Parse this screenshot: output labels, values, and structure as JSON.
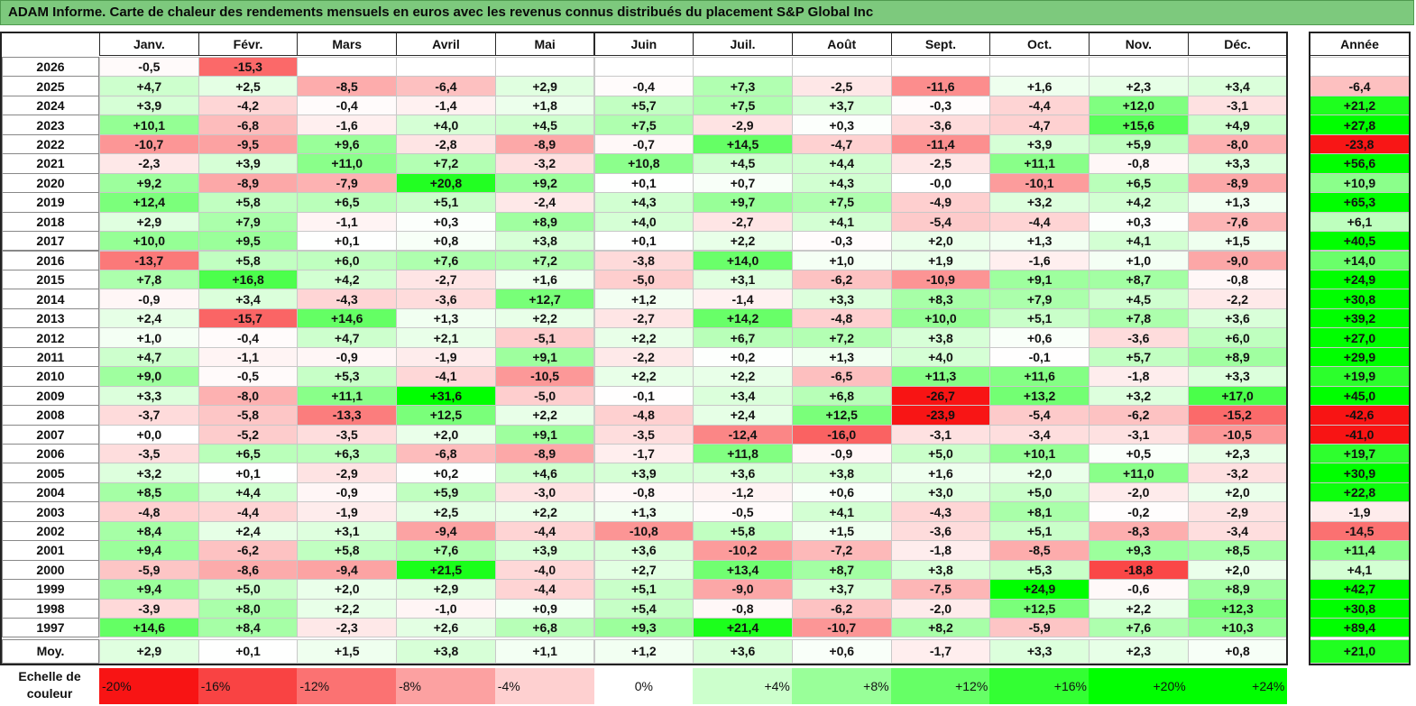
{
  "title": "ADAM Informe. Carte de chaleur des rendements mensuels en euros avec les revenus connus distribués du placement S&P Global Inc",
  "chart_data": {
    "type": "heatmap",
    "columns": [
      "Janv.",
      "Févr.",
      "Mars",
      "Avril",
      "Mai",
      "Juin",
      "Juil.",
      "Août",
      "Sept.",
      "Oct.",
      "Nov.",
      "Déc."
    ],
    "year_column_label": "Année",
    "rows": [
      {
        "year": "2026",
        "values": [
          "-0,5",
          "-15,3",
          "",
          "",
          "",
          "",
          "",
          "",
          "",
          "",
          "",
          ""
        ],
        "annual": ""
      },
      {
        "year": "2025",
        "values": [
          "+4,7",
          "+2,5",
          "-8,5",
          "-6,4",
          "+2,9",
          "-0,4",
          "+7,3",
          "-2,5",
          "-11,6",
          "+1,6",
          "+2,3",
          "+3,4"
        ],
        "annual": "-6,4"
      },
      {
        "year": "2024",
        "values": [
          "+3,9",
          "-4,2",
          "-0,4",
          "-1,4",
          "+1,8",
          "+5,7",
          "+7,5",
          "+3,7",
          "-0,3",
          "-4,4",
          "+12,0",
          "-3,1"
        ],
        "annual": "+21,2"
      },
      {
        "year": "2023",
        "values": [
          "+10,1",
          "-6,8",
          "-1,6",
          "+4,0",
          "+4,5",
          "+7,5",
          "-2,9",
          "+0,3",
          "-3,6",
          "-4,7",
          "+15,6",
          "+4,9"
        ],
        "annual": "+27,8"
      },
      {
        "year": "2022",
        "values": [
          "-10,7",
          "-9,5",
          "+9,6",
          "-2,8",
          "-8,9",
          "-0,7",
          "+14,5",
          "-4,7",
          "-11,4",
          "+3,9",
          "+5,9",
          "-8,0"
        ],
        "annual": "-23,8"
      },
      {
        "year": "2021",
        "values": [
          "-2,3",
          "+3,9",
          "+11,0",
          "+7,2",
          "-3,2",
          "+10,8",
          "+4,5",
          "+4,4",
          "-2,5",
          "+11,1",
          "-0,8",
          "+3,3"
        ],
        "annual": "+56,6"
      },
      {
        "year": "2020",
        "values": [
          "+9,2",
          "-8,9",
          "-7,9",
          "+20,8",
          "+9,2",
          "+0,1",
          "+0,7",
          "+4,3",
          "-0,0",
          "-10,1",
          "+6,5",
          "-8,9"
        ],
        "annual": "+10,9"
      },
      {
        "year": "2019",
        "values": [
          "+12,4",
          "+5,8",
          "+6,5",
          "+5,1",
          "-2,4",
          "+4,3",
          "+9,7",
          "+7,5",
          "-4,9",
          "+3,2",
          "+4,2",
          "+1,3"
        ],
        "annual": "+65,3"
      },
      {
        "year": "2018",
        "values": [
          "+2,9",
          "+7,9",
          "-1,1",
          "+0,3",
          "+8,9",
          "+4,0",
          "-2,7",
          "+4,1",
          "-5,4",
          "-4,4",
          "+0,3",
          "-7,6"
        ],
        "annual": "+6,1"
      },
      {
        "year": "2017",
        "values": [
          "+10,0",
          "+9,5",
          "+0,1",
          "+0,8",
          "+3,8",
          "+0,1",
          "+2,2",
          "-0,3",
          "+2,0",
          "+1,3",
          "+4,1",
          "+1,5"
        ],
        "annual": "+40,5"
      },
      {
        "year": "2016",
        "values": [
          "-13,7",
          "+5,8",
          "+6,0",
          "+7,6",
          "+7,2",
          "-3,8",
          "+14,0",
          "+1,0",
          "+1,9",
          "-1,6",
          "+1,0",
          "-9,0"
        ],
        "annual": "+14,0"
      },
      {
        "year": "2015",
        "values": [
          "+7,8",
          "+16,8",
          "+4,2",
          "-2,7",
          "+1,6",
          "-5,0",
          "+3,1",
          "-6,2",
          "-10,9",
          "+9,1",
          "+8,7",
          "-0,8"
        ],
        "annual": "+24,9"
      },
      {
        "year": "2014",
        "values": [
          "-0,9",
          "+3,4",
          "-4,3",
          "-3,6",
          "+12,7",
          "+1,2",
          "-1,4",
          "+3,3",
          "+8,3",
          "+7,9",
          "+4,5",
          "-2,2"
        ],
        "annual": "+30,8"
      },
      {
        "year": "2013",
        "values": [
          "+2,4",
          "-15,7",
          "+14,6",
          "+1,3",
          "+2,2",
          "-2,7",
          "+14,2",
          "-4,8",
          "+10,0",
          "+5,1",
          "+7,8",
          "+3,6"
        ],
        "annual": "+39,2"
      },
      {
        "year": "2012",
        "values": [
          "+1,0",
          "-0,4",
          "+4,7",
          "+2,1",
          "-5,1",
          "+2,2",
          "+6,7",
          "+7,2",
          "+3,8",
          "+0,6",
          "-3,6",
          "+6,0"
        ],
        "annual": "+27,0"
      },
      {
        "year": "2011",
        "values": [
          "+4,7",
          "-1,1",
          "-0,9",
          "-1,9",
          "+9,1",
          "-2,2",
          "+0,2",
          "+1,3",
          "+4,0",
          "-0,1",
          "+5,7",
          "+8,9"
        ],
        "annual": "+29,9"
      },
      {
        "year": "2010",
        "values": [
          "+9,0",
          "-0,5",
          "+5,3",
          "-4,1",
          "-10,5",
          "+2,2",
          "+2,2",
          "-6,5",
          "+11,3",
          "+11,6",
          "-1,8",
          "+3,3"
        ],
        "annual": "+19,9"
      },
      {
        "year": "2009",
        "values": [
          "+3,3",
          "-8,0",
          "+11,1",
          "+31,6",
          "-5,0",
          "-0,1",
          "+3,4",
          "+6,8",
          "-26,7",
          "+13,2",
          "+3,2",
          "+17,0"
        ],
        "annual": "+45,0"
      },
      {
        "year": "2008",
        "values": [
          "-3,7",
          "-5,8",
          "-13,3",
          "+12,5",
          "+2,2",
          "-4,8",
          "+2,4",
          "+12,5",
          "-23,9",
          "-5,4",
          "-6,2",
          "-15,2"
        ],
        "annual": "-42,6"
      },
      {
        "year": "2007",
        "values": [
          "+0,0",
          "-5,2",
          "-3,5",
          "+2,0",
          "+9,1",
          "-3,5",
          "-12,4",
          "-16,0",
          "-3,1",
          "-3,4",
          "-3,1",
          "-10,5"
        ],
        "annual": "-41,0"
      },
      {
        "year": "2006",
        "values": [
          "-3,5",
          "+6,5",
          "+6,3",
          "-6,8",
          "-8,9",
          "-1,7",
          "+11,8",
          "-0,9",
          "+5,0",
          "+10,1",
          "+0,5",
          "+2,3"
        ],
        "annual": "+19,7"
      },
      {
        "year": "2005",
        "values": [
          "+3,2",
          "+0,1",
          "-2,9",
          "+0,2",
          "+4,6",
          "+3,9",
          "+3,6",
          "+3,8",
          "+1,6",
          "+2,0",
          "+11,0",
          "-3,2"
        ],
        "annual": "+30,9"
      },
      {
        "year": "2004",
        "values": [
          "+8,5",
          "+4,4",
          "-0,9",
          "+5,9",
          "-3,0",
          "-0,8",
          "-1,2",
          "+0,6",
          "+3,0",
          "+5,0",
          "-2,0",
          "+2,0"
        ],
        "annual": "+22,8"
      },
      {
        "year": "2003",
        "values": [
          "-4,8",
          "-4,4",
          "-1,9",
          "+2,5",
          "+2,2",
          "+1,3",
          "-0,5",
          "+4,1",
          "-4,3",
          "+8,1",
          "-0,2",
          "-2,9"
        ],
        "annual": "-1,9"
      },
      {
        "year": "2002",
        "values": [
          "+8,4",
          "+2,4",
          "+3,1",
          "-9,4",
          "-4,4",
          "-10,8",
          "+5,8",
          "+1,5",
          "-3,6",
          "+5,1",
          "-8,3",
          "-3,4"
        ],
        "annual": "-14,5"
      },
      {
        "year": "2001",
        "values": [
          "+9,4",
          "-6,2",
          "+5,8",
          "+7,6",
          "+3,9",
          "+3,6",
          "-10,2",
          "-7,2",
          "-1,8",
          "-8,5",
          "+9,3",
          "+8,5"
        ],
        "annual": "+11,4"
      },
      {
        "year": "2000",
        "values": [
          "-5,9",
          "-8,6",
          "-9,4",
          "+21,5",
          "-4,0",
          "+2,7",
          "+13,4",
          "+8,7",
          "+3,8",
          "+5,3",
          "-18,8",
          "+2,0"
        ],
        "annual": "+4,1"
      },
      {
        "year": "1999",
        "values": [
          "+9,4",
          "+5,0",
          "+2,0",
          "+2,9",
          "-4,4",
          "+5,1",
          "-9,0",
          "+3,7",
          "-7,5",
          "+24,9",
          "-0,6",
          "+8,9"
        ],
        "annual": "+42,7"
      },
      {
        "year": "1998",
        "values": [
          "-3,9",
          "+8,0",
          "+2,2",
          "-1,0",
          "+0,9",
          "+5,4",
          "-0,8",
          "-6,2",
          "-2,0",
          "+12,5",
          "+2,2",
          "+12,3"
        ],
        "annual": "+30,8"
      },
      {
        "year": "1997",
        "values": [
          "+14,6",
          "+8,4",
          "-2,3",
          "+2,6",
          "+6,8",
          "+9,3",
          "+21,4",
          "-10,7",
          "+8,2",
          "-5,9",
          "+7,6",
          "+10,3"
        ],
        "annual": "+89,4"
      }
    ],
    "average": {
      "label": "Moy.",
      "values": [
        "+2,9",
        "+0,1",
        "+1,5",
        "+3,8",
        "+1,1",
        "+1,2",
        "+3,6",
        "+0,6",
        "-1,7",
        "+3,3",
        "+2,3",
        "+0,8"
      ],
      "annual": "+21,0"
    },
    "color_scale": {
      "label": "Echelle de couleur",
      "stops": [
        "-20%",
        "-16%",
        "-12%",
        "-8%",
        "-4%",
        "0%",
        "+4%",
        "+8%",
        "+12%",
        "+16%",
        "+20%",
        "+24%"
      ],
      "negative_color": "#f81414",
      "positive_color": "#00ff00",
      "neutral_color": "#ffffff"
    }
  }
}
